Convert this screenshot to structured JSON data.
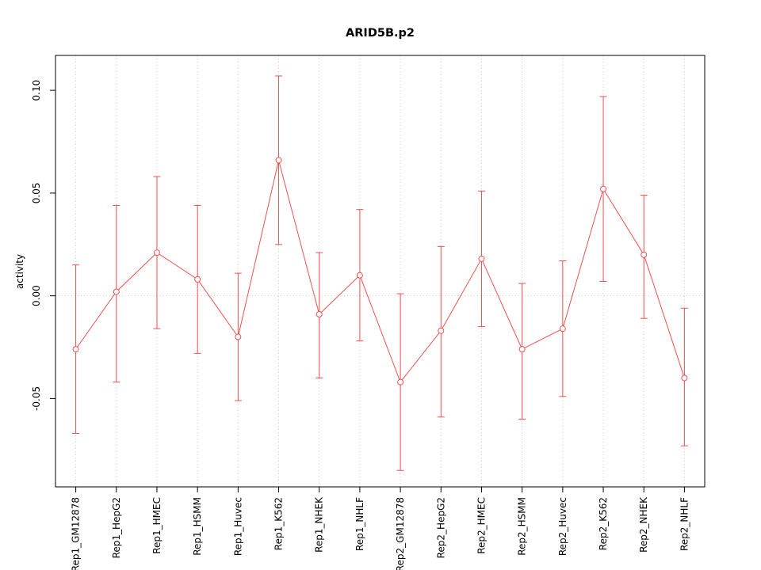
{
  "chart_data": {
    "type": "line",
    "title": "ARID5B.p2",
    "xlabel": "",
    "ylabel": "activity",
    "categories": [
      "Rep1_GM12878",
      "Rep1_HepG2",
      "Rep1_HMEC",
      "Rep1_HSMM",
      "Rep1_Huvec",
      "Rep1_K562",
      "Rep1_NHEK",
      "Rep1_NHLF",
      "Rep2_GM12878",
      "Rep2_HepG2",
      "Rep2_HMEC",
      "Rep2_HSMM",
      "Rep2_Huvec",
      "Rep2_K562",
      "Rep2_NHEK",
      "Rep2_NHLF"
    ],
    "series": [
      {
        "name": "activity",
        "values": [
          -0.026,
          0.002,
          0.021,
          0.008,
          -0.02,
          0.066,
          -0.009,
          0.01,
          -0.042,
          -0.017,
          0.018,
          -0.026,
          -0.016,
          0.052,
          0.02,
          -0.04
        ],
        "err_high": [
          0.015,
          0.044,
          0.058,
          0.044,
          0.011,
          0.107,
          0.021,
          0.042,
          0.001,
          0.024,
          0.051,
          0.006,
          0.017,
          0.097,
          0.049,
          -0.006
        ],
        "err_low": [
          -0.067,
          -0.042,
          -0.016,
          -0.028,
          -0.051,
          0.025,
          -0.04,
          -0.022,
          -0.085,
          -0.059,
          -0.015,
          -0.06,
          -0.049,
          0.007,
          -0.011,
          -0.073
        ]
      }
    ],
    "ylim": [
      -0.093,
      0.117
    ],
    "yticks": [
      -0.05,
      0.0,
      0.05,
      0.1
    ],
    "layout": {
      "legend": "none",
      "grid": "dotted vertical line at each category; dotted horizontal line at y=0",
      "x_tick_label_rotation": -90,
      "y_tick_label_rotation": -90
    },
    "colors": {
      "series": "#ee5050",
      "grid": "#c9c9c9",
      "axis": "#000000",
      "background": "#ffffff",
      "point_fill": "#ffffff"
    }
  }
}
